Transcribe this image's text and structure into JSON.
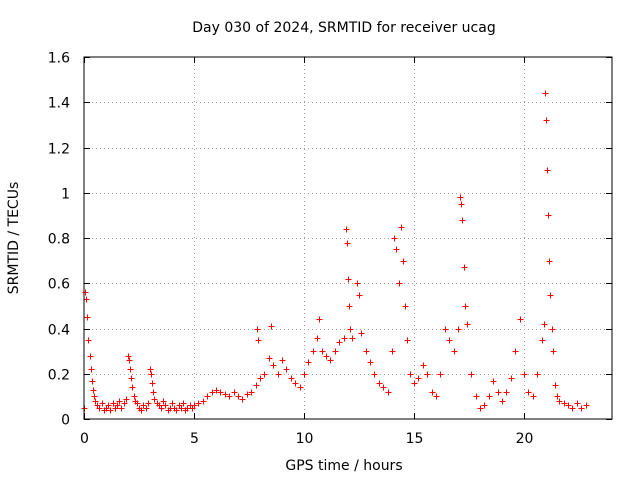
{
  "chart_data": {
    "type": "scatter",
    "title": "Day 030 of 2024, SRMTID for receiver ucag",
    "xlabel": "GPS time / hours",
    "ylabel": "SRMTID / TECUs",
    "xlim": [
      0,
      24
    ],
    "ylim": [
      0,
      1.6
    ],
    "x_ticks": [
      0,
      5,
      10,
      15,
      20
    ],
    "x_tick_labels": [
      "0",
      "5",
      "10",
      "15",
      "20"
    ],
    "y_ticks": [
      0,
      0.2,
      0.4,
      0.6,
      0.8,
      1,
      1.2,
      1.4,
      1.6
    ],
    "y_tick_labels": [
      "0",
      "0.2",
      "0.4",
      "0.6",
      "0.8",
      "1",
      "1.2",
      "1.4",
      "1.6"
    ],
    "grid": true,
    "marker": "plus",
    "color": "#ff0000",
    "series": [
      {
        "name": "SRMTID",
        "points": [
          [
            0.0,
            0.05
          ],
          [
            0.05,
            0.56
          ],
          [
            0.1,
            0.53
          ],
          [
            0.15,
            0.45
          ],
          [
            0.2,
            0.35
          ],
          [
            0.25,
            0.28
          ],
          [
            0.3,
            0.22
          ],
          [
            0.35,
            0.17
          ],
          [
            0.4,
            0.13
          ],
          [
            0.45,
            0.1
          ],
          [
            0.5,
            0.08
          ],
          [
            0.6,
            0.06
          ],
          [
            0.7,
            0.05
          ],
          [
            0.8,
            0.07
          ],
          [
            0.9,
            0.04
          ],
          [
            1.0,
            0.05
          ],
          [
            1.1,
            0.06
          ],
          [
            1.2,
            0.04
          ],
          [
            1.3,
            0.07
          ],
          [
            1.4,
            0.05
          ],
          [
            1.5,
            0.06
          ],
          [
            1.6,
            0.08
          ],
          [
            1.7,
            0.05
          ],
          [
            1.8,
            0.07
          ],
          [
            1.9,
            0.09
          ],
          [
            2.0,
            0.28
          ],
          [
            2.05,
            0.26
          ],
          [
            2.1,
            0.22
          ],
          [
            2.15,
            0.18
          ],
          [
            2.2,
            0.14
          ],
          [
            2.25,
            0.1
          ],
          [
            2.3,
            0.08
          ],
          [
            2.4,
            0.07
          ],
          [
            2.5,
            0.05
          ],
          [
            2.6,
            0.04
          ],
          [
            2.7,
            0.06
          ],
          [
            2.8,
            0.05
          ],
          [
            2.9,
            0.07
          ],
          [
            3.0,
            0.22
          ],
          [
            3.05,
            0.2
          ],
          [
            3.1,
            0.16
          ],
          [
            3.15,
            0.12
          ],
          [
            3.2,
            0.09
          ],
          [
            3.3,
            0.07
          ],
          [
            3.4,
            0.06
          ],
          [
            3.5,
            0.05
          ],
          [
            3.6,
            0.08
          ],
          [
            3.7,
            0.06
          ],
          [
            3.8,
            0.04
          ],
          [
            3.9,
            0.05
          ],
          [
            4.0,
            0.07
          ],
          [
            4.1,
            0.05
          ],
          [
            4.2,
            0.04
          ],
          [
            4.3,
            0.06
          ],
          [
            4.4,
            0.05
          ],
          [
            4.5,
            0.07
          ],
          [
            4.6,
            0.04
          ],
          [
            4.7,
            0.05
          ],
          [
            4.8,
            0.06
          ],
          [
            4.9,
            0.05
          ],
          [
            5.0,
            0.06
          ],
          [
            5.2,
            0.07
          ],
          [
            5.4,
            0.08
          ],
          [
            5.6,
            0.1
          ],
          [
            5.8,
            0.12
          ],
          [
            6.0,
            0.13
          ],
          [
            6.2,
            0.12
          ],
          [
            6.4,
            0.11
          ],
          [
            6.6,
            0.1
          ],
          [
            6.8,
            0.12
          ],
          [
            7.0,
            0.1
          ],
          [
            7.2,
            0.09
          ],
          [
            7.4,
            0.11
          ],
          [
            7.6,
            0.12
          ],
          [
            7.8,
            0.15
          ],
          [
            7.85,
            0.4
          ],
          [
            7.9,
            0.35
          ],
          [
            8.0,
            0.18
          ],
          [
            8.2,
            0.2
          ],
          [
            8.4,
            0.27
          ],
          [
            8.5,
            0.41
          ],
          [
            8.6,
            0.24
          ],
          [
            8.8,
            0.2
          ],
          [
            9.0,
            0.26
          ],
          [
            9.2,
            0.22
          ],
          [
            9.4,
            0.18
          ],
          [
            9.6,
            0.16
          ],
          [
            9.8,
            0.14
          ],
          [
            10.0,
            0.2
          ],
          [
            10.2,
            0.25
          ],
          [
            10.4,
            0.3
          ],
          [
            10.6,
            0.36
          ],
          [
            10.7,
            0.44
          ],
          [
            10.8,
            0.3
          ],
          [
            11.0,
            0.28
          ],
          [
            11.2,
            0.26
          ],
          [
            11.4,
            0.3
          ],
          [
            11.6,
            0.34
          ],
          [
            11.8,
            0.36
          ],
          [
            11.9,
            0.84
          ],
          [
            11.95,
            0.78
          ],
          [
            12.0,
            0.62
          ],
          [
            12.05,
            0.5
          ],
          [
            12.1,
            0.4
          ],
          [
            12.2,
            0.36
          ],
          [
            12.4,
            0.6
          ],
          [
            12.5,
            0.55
          ],
          [
            12.6,
            0.38
          ],
          [
            12.8,
            0.3
          ],
          [
            13.0,
            0.25
          ],
          [
            13.2,
            0.2
          ],
          [
            13.4,
            0.16
          ],
          [
            13.6,
            0.14
          ],
          [
            13.8,
            0.12
          ],
          [
            14.0,
            0.3
          ],
          [
            14.1,
            0.8
          ],
          [
            14.2,
            0.75
          ],
          [
            14.3,
            0.6
          ],
          [
            14.4,
            0.85
          ],
          [
            14.5,
            0.7
          ],
          [
            14.6,
            0.5
          ],
          [
            14.7,
            0.35
          ],
          [
            14.8,
            0.2
          ],
          [
            15.0,
            0.16
          ],
          [
            15.2,
            0.18
          ],
          [
            15.4,
            0.24
          ],
          [
            15.6,
            0.2
          ],
          [
            15.8,
            0.12
          ],
          [
            16.0,
            0.1
          ],
          [
            16.2,
            0.2
          ],
          [
            16.4,
            0.4
          ],
          [
            16.6,
            0.35
          ],
          [
            16.8,
            0.3
          ],
          [
            17.0,
            0.4
          ],
          [
            17.1,
            0.98
          ],
          [
            17.15,
            0.95
          ],
          [
            17.2,
            0.88
          ],
          [
            17.25,
            0.67
          ],
          [
            17.3,
            0.5
          ],
          [
            17.4,
            0.42
          ],
          [
            17.6,
            0.2
          ],
          [
            17.8,
            0.1
          ],
          [
            18.0,
            0.05
          ],
          [
            18.2,
            0.06
          ],
          [
            18.4,
            0.1
          ],
          [
            18.6,
            0.17
          ],
          [
            18.8,
            0.12
          ],
          [
            19.0,
            0.08
          ],
          [
            19.2,
            0.12
          ],
          [
            19.4,
            0.18
          ],
          [
            19.6,
            0.3
          ],
          [
            19.8,
            0.44
          ],
          [
            20.0,
            0.2
          ],
          [
            20.2,
            0.12
          ],
          [
            20.4,
            0.1
          ],
          [
            20.6,
            0.2
          ],
          [
            20.8,
            0.35
          ],
          [
            20.9,
            0.42
          ],
          [
            20.95,
            1.44
          ],
          [
            21.0,
            1.32
          ],
          [
            21.05,
            1.1
          ],
          [
            21.1,
            0.9
          ],
          [
            21.15,
            0.7
          ],
          [
            21.2,
            0.55
          ],
          [
            21.25,
            0.4
          ],
          [
            21.3,
            0.3
          ],
          [
            21.4,
            0.15
          ],
          [
            21.5,
            0.1
          ],
          [
            21.6,
            0.08
          ],
          [
            21.8,
            0.07
          ],
          [
            22.0,
            0.06
          ],
          [
            22.2,
            0.05
          ],
          [
            22.4,
            0.07
          ],
          [
            22.6,
            0.05
          ],
          [
            22.8,
            0.06
          ]
        ]
      }
    ]
  }
}
